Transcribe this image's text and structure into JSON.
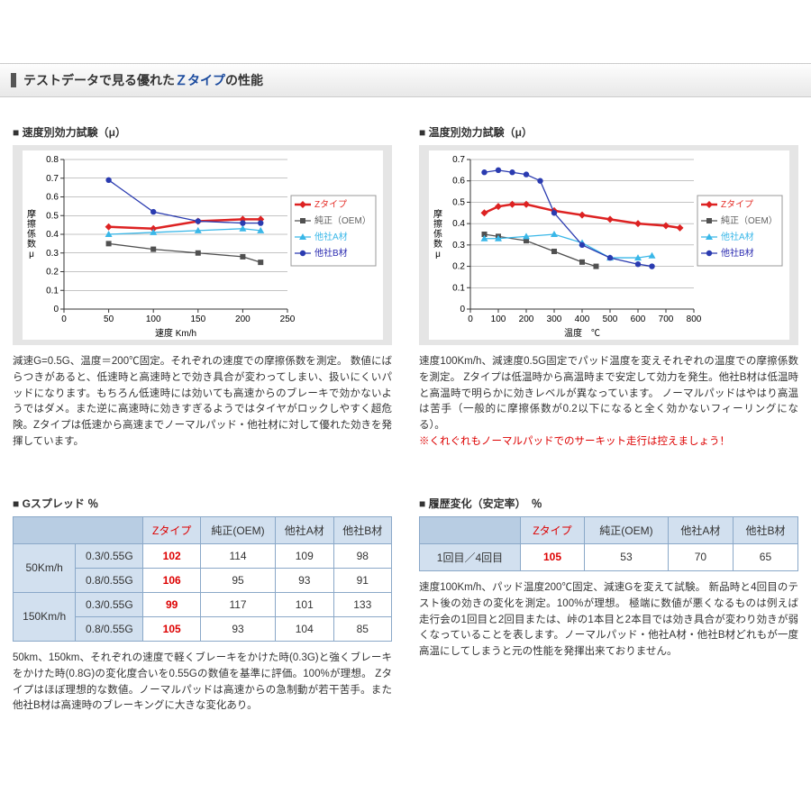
{
  "section_title_a": "テストデータで見る優れた",
  "section_title_b": "Ｚタイプ",
  "section_title_c": "の性能",
  "chart_speed": {
    "title": "速度別効力試験（μ）",
    "xlabel": "速度 Km/h",
    "ylabel": "摩擦係数μ",
    "xlim": [
      0,
      250
    ],
    "xticks": [
      0,
      50,
      100,
      150,
      200,
      250
    ],
    "ylim": [
      0,
      0.8
    ],
    "yticks": [
      0,
      0.1,
      0.2,
      0.3,
      0.4,
      0.5,
      0.6,
      0.7,
      0.8
    ],
    "legend_pos": "right",
    "background": "#ffffff",
    "frame": "#e5e5e5",
    "grid_color": "#888888",
    "series": [
      {
        "name": "Zタイプ",
        "color": "#e5302a",
        "plot_color": "#d22",
        "marker": "diamond",
        "width": 2.5,
        "x": [
          50,
          100,
          150,
          200,
          220
        ],
        "y": [
          0.44,
          0.43,
          0.47,
          0.48,
          0.48
        ]
      },
      {
        "name": "純正（OEM）",
        "color": "#606060",
        "plot_color": "#505050",
        "marker": "square",
        "width": 1.3,
        "x": [
          50,
          100,
          150,
          200,
          220
        ],
        "y": [
          0.35,
          0.32,
          0.3,
          0.28,
          0.25
        ]
      },
      {
        "name": "他社A材",
        "color": "#39b7e8",
        "plot_color": "#39b7e8",
        "marker": "triangle",
        "width": 1.3,
        "x": [
          50,
          100,
          150,
          200,
          220
        ],
        "y": [
          0.4,
          0.41,
          0.42,
          0.43,
          0.42
        ]
      },
      {
        "name": "他社B材",
        "color": "#2a2ab0",
        "plot_color": "#2a3bb0",
        "marker": "circle",
        "width": 1.3,
        "x": [
          50,
          100,
          150,
          200,
          220
        ],
        "y": [
          0.69,
          0.52,
          0.47,
          0.46,
          0.46
        ]
      }
    ],
    "desc": "減速G=0.5G、温度＝200℃固定。それぞれの速度での摩擦係数を測定。\n数値にばらつきがあると、低速時と高速時とで効き具合が変わってしまい、扱いにくいパッドになります。もちろん低速時には効いても高速からのブレーキで効かないようではダメ。また逆に高速時に効きすぎるようではタイヤがロックしやすく超危険。Zタイプは低速から高速までノーマルパッド・他社材に対して優れた効きを発揮しています。"
  },
  "chart_temp": {
    "title": "温度別効力試験（μ）",
    "xlabel": "温度　℃",
    "ylabel": "摩擦係数μ",
    "xlim": [
      0,
      800
    ],
    "xticks": [
      0,
      100,
      200,
      300,
      400,
      500,
      600,
      700,
      800
    ],
    "ylim": [
      0,
      0.7
    ],
    "yticks": [
      0,
      0.1,
      0.2,
      0.3,
      0.4,
      0.5,
      0.6,
      0.7
    ],
    "legend_pos": "right",
    "background": "#ffffff",
    "frame": "#e5e5e5",
    "grid_color": "#888888",
    "series": [
      {
        "name": "Zタイプ",
        "color": "#e5302a",
        "plot_color": "#d22",
        "marker": "diamond",
        "width": 2.5,
        "x": [
          50,
          100,
          150,
          200,
          300,
          400,
          500,
          600,
          700,
          750
        ],
        "y": [
          0.45,
          0.48,
          0.49,
          0.49,
          0.46,
          0.44,
          0.42,
          0.4,
          0.39,
          0.38
        ]
      },
      {
        "name": "純正（OEM）",
        "color": "#606060",
        "plot_color": "#505050",
        "marker": "square",
        "width": 1.3,
        "x": [
          50,
          100,
          200,
          300,
          400,
          450
        ],
        "y": [
          0.35,
          0.34,
          0.32,
          0.27,
          0.22,
          0.2
        ]
      },
      {
        "name": "他社A材",
        "color": "#39b7e8",
        "plot_color": "#39b7e8",
        "marker": "triangle",
        "width": 1.3,
        "x": [
          50,
          100,
          200,
          300,
          400,
          500,
          600,
          650
        ],
        "y": [
          0.33,
          0.33,
          0.34,
          0.35,
          0.31,
          0.24,
          0.24,
          0.25
        ]
      },
      {
        "name": "他社B材",
        "color": "#2a2ab0",
        "plot_color": "#2a3bb0",
        "marker": "circle",
        "width": 1.3,
        "x": [
          50,
          100,
          150,
          200,
          250,
          300,
          400,
          500,
          600,
          650
        ],
        "y": [
          0.64,
          0.65,
          0.64,
          0.63,
          0.6,
          0.45,
          0.3,
          0.24,
          0.21,
          0.2
        ]
      }
    ],
    "desc": "速度100Km/h、減速度0.5G固定でパッド温度を変えそれぞれの温度での摩擦係数を測定。\nZタイプは低温時から高温時まで安定して効力を発生。他社B材は低温時と高温時で明らかに効きレベルが異なっています。 ノーマルパッドはやはり高温は苦手（一般的に摩擦係数が0.2以下になると全く効かないフィーリングになる）。",
    "note": "※くれぐれもノーマルパッドでのサーキット走行は控えましょう！"
  },
  "table_gspread": {
    "title": "Gスプレッド ％",
    "cols": [
      "Zタイプ",
      "純正(OEM)",
      "他社A材",
      "他社B材"
    ],
    "groups": [
      {
        "label": "50Km/h",
        "rows": [
          {
            "sub": "0.3/0.55G",
            "vals": [
              "102",
              "114",
              "109",
              "98"
            ]
          },
          {
            "sub": "0.8/0.55G",
            "vals": [
              "106",
              "95",
              "93",
              "91"
            ]
          }
        ]
      },
      {
        "label": "150Km/h",
        "rows": [
          {
            "sub": "0.3/0.55G",
            "vals": [
              "99",
              "117",
              "101",
              "133"
            ]
          },
          {
            "sub": "0.8/0.55G",
            "vals": [
              "105",
              "93",
              "104",
              "85"
            ]
          }
        ]
      }
    ],
    "desc": "50km、150km、それぞれの速度で軽くブレーキをかけた時(0.3G)と強くブレーキをかけた時(0.8G)の変化度合いを0.55Gの数値を基準に評価。100%が理想。\nZタイプはほぼ理想的な数値。ノーマルパッドは高速からの急制動が若干苦手。また他社B材は高速時のブレーキングに大きな変化あり。"
  },
  "table_history": {
    "title": "履歴変化（安定率）　％",
    "cols": [
      "Zタイプ",
      "純正(OEM)",
      "他社A材",
      "他社B材"
    ],
    "rowlabel": "1回目／4回目",
    "vals": [
      "105",
      "53",
      "70",
      "65"
    ],
    "desc": "速度100Km/h、パッド温度200℃固定、減速Gを変えて試験。\n新品時と4回目のテスト後の効きの変化を測定。100%が理想。\n極端に数値が悪くなるものは例えば走行会の1回目と2回目または、峠の1本目と2本目では効き具合が変わり効きが弱くなっていることを表します。ノーマルパッド・他社A材・他社B材どれもが一度高温にしてしまうと元の性能を発揮出来ておりません。"
  }
}
